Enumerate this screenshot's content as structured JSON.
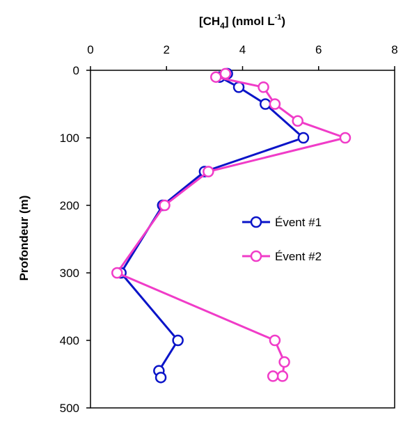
{
  "chart_data": {
    "type": "line",
    "xlabel": "[CH4] (nmol L-1)",
    "xlabel_parts": {
      "base": "[CH",
      "sub": "4",
      "mid": "] (nmol L",
      "sup": "-1",
      "end": ")"
    },
    "ylabel": "Profondeur (m)",
    "xlim": [
      0,
      8
    ],
    "ylim": [
      0,
      500
    ],
    "x_axis_position": "top",
    "y_axis_inverted": true,
    "xticks": [
      0,
      2,
      4,
      6,
      8
    ],
    "yticks": [
      0,
      100,
      200,
      300,
      400,
      500
    ],
    "grid": false,
    "legend": {
      "position": "center-right"
    },
    "series": [
      {
        "name": "Évent #1",
        "color": "#0a14c8",
        "marker": "open-circle",
        "points": [
          {
            "x": 3.6,
            "y": 5
          },
          {
            "x": 3.4,
            "y": 10
          },
          {
            "x": 3.9,
            "y": 25
          },
          {
            "x": 4.6,
            "y": 50
          },
          {
            "x": 5.6,
            "y": 100
          },
          {
            "x": 3.0,
            "y": 150
          },
          {
            "x": 1.9,
            "y": 200
          },
          {
            "x": 0.8,
            "y": 300
          },
          {
            "x": 2.3,
            "y": 400
          },
          {
            "x": 1.8,
            "y": 445
          },
          {
            "x": 1.85,
            "y": 455
          }
        ]
      },
      {
        "name": "Évent #2",
        "color": "#f03cc8",
        "marker": "open-circle",
        "points": [
          {
            "x": 3.55,
            "y": 5
          },
          {
            "x": 3.3,
            "y": 10
          },
          {
            "x": 4.55,
            "y": 25
          },
          {
            "x": 4.85,
            "y": 50
          },
          {
            "x": 5.45,
            "y": 75
          },
          {
            "x": 6.7,
            "y": 100
          },
          {
            "x": 3.1,
            "y": 150
          },
          {
            "x": 1.95,
            "y": 200
          },
          {
            "x": 0.7,
            "y": 300
          },
          {
            "x": 4.85,
            "y": 400
          },
          {
            "x": 5.1,
            "y": 432
          },
          {
            "x": 5.05,
            "y": 453
          },
          {
            "x": 4.8,
            "y": 453
          }
        ]
      }
    ]
  }
}
